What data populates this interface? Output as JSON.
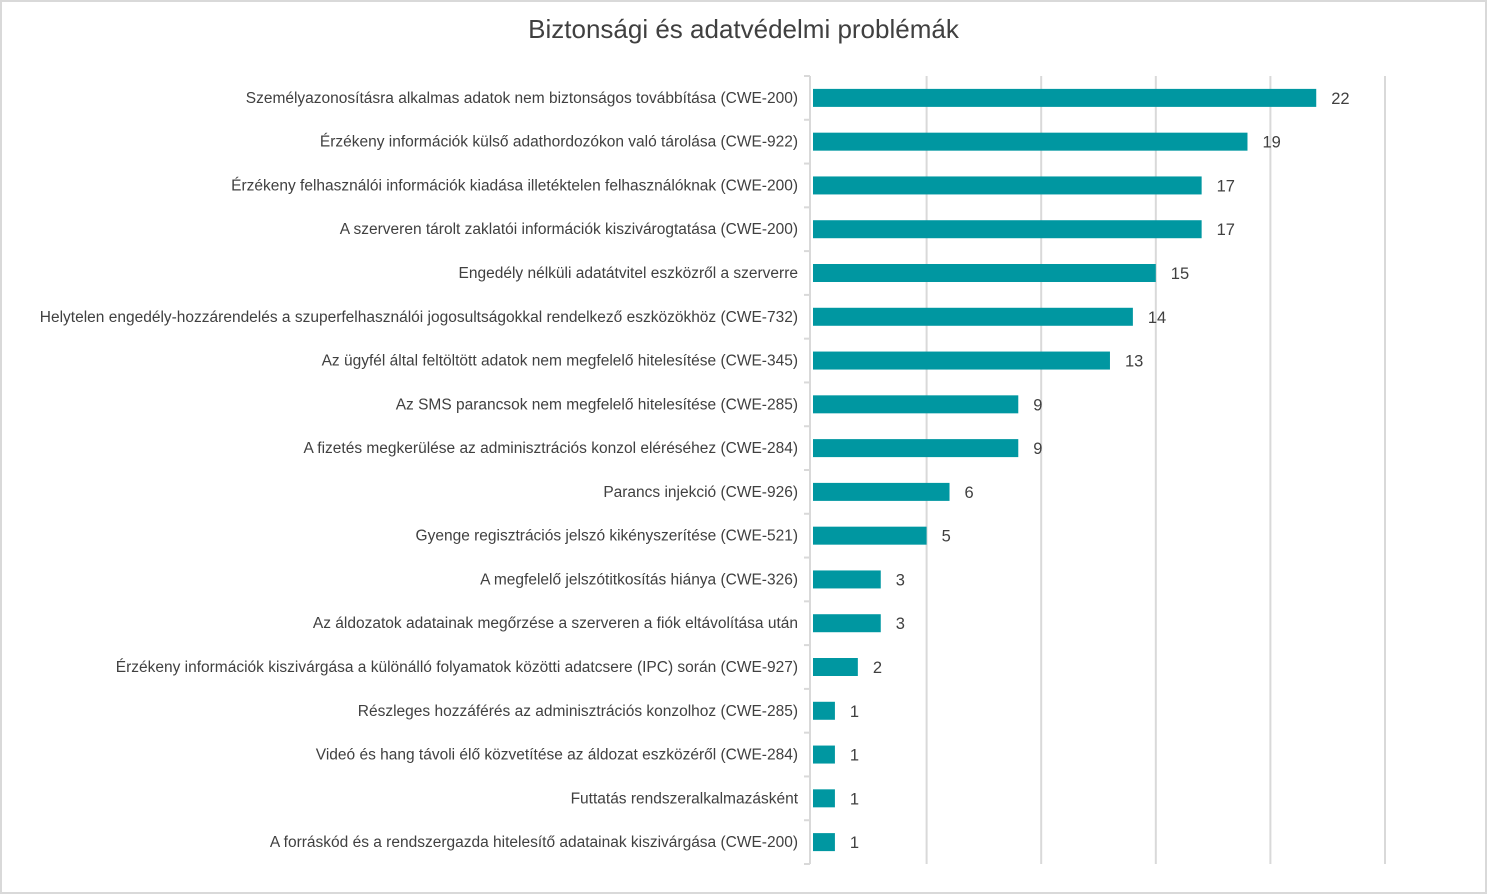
{
  "chart_data": {
    "type": "bar",
    "orientation": "horizontal",
    "title": "Biztonsági és adatvédelmi problémák",
    "xlabel": "",
    "ylabel": "",
    "xlim": [
      0,
      25
    ],
    "grid": true,
    "gridlines_at": [
      5,
      10,
      15,
      20,
      25
    ],
    "legend": "none",
    "bar_color": "#0097a1",
    "categories": [
      "Személyazonosításra alkalmas adatok nem biztonságos továbbítása (CWE-200)",
      "Érzékeny információk külső adathordozókon való tárolása (CWE-922)",
      "Érzékeny felhasználói információk kiadása illetéktelen felhasználóknak (CWE-200)",
      "A szerveren tárolt zaklatói információk kiszivárogtatása (CWE-200)",
      "Engedély nélküli adatátvitel eszközről a szerverre",
      "Helytelen engedély-hozzárendelés a szuperfelhasználói jogosultságokkal rendelkező eszközökhöz (CWE-732)",
      "Az ügyfél által feltöltött adatok nem megfelelő hitelesítése (CWE-345)",
      "Az SMS parancsok nem megfelelő hitelesítése (CWE-285)",
      "A fizetés megkerülése az adminisztrációs konzol eléréséhez (CWE-284)",
      "Parancs injekció (CWE-926)",
      "Gyenge regisztrációs jelszó kikényszerítése (CWE-521)",
      "A megfelelő jelszótitkosítás hiánya (CWE-326)",
      "Az áldozatok adatainak megőrzése a szerveren a fiók eltávolítása után",
      "Érzékeny információk kiszivárgása a különálló folyamatok közötti adatcsere (IPC) során (CWE-927)",
      "Részleges hozzáférés az adminisztrációs konzolhoz (CWE-285)",
      "Videó és hang távoli élő közvetítése az áldozat eszközéről (CWE-284)",
      "Futtatás rendszeralkalmazásként",
      "A forráskód és a rendszergazda hitelesítő adatainak kiszivárgása  (CWE-200)"
    ],
    "values": [
      22,
      19,
      17,
      17,
      15,
      14,
      13,
      9,
      9,
      6,
      5,
      3,
      3,
      2,
      1,
      1,
      1,
      1
    ],
    "value_label_colors": {
      "default": "#404040",
      "value_1": "#1a9aa6"
    }
  }
}
